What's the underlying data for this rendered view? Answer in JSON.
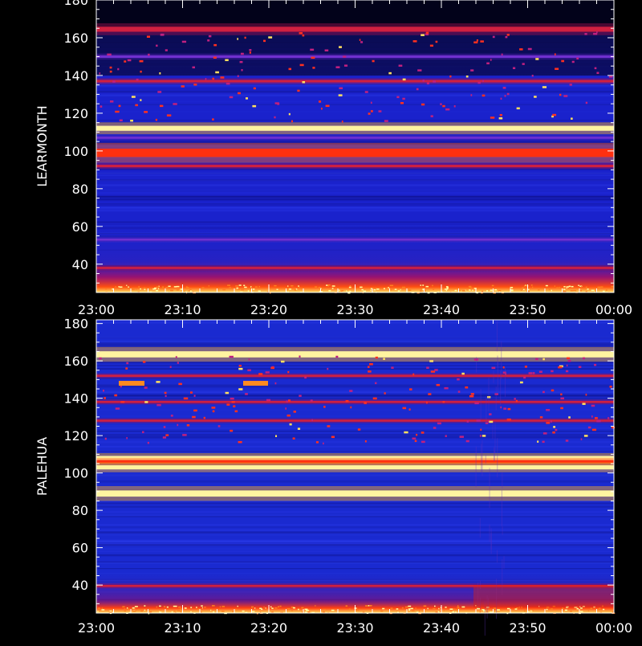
{
  "chart_data": [
    {
      "type": "heatmap",
      "station": "LEARMONTH",
      "ylabel": "LEARMONTH",
      "xlabel": "",
      "x_ticks": [
        "23:00",
        "23:10",
        "23:20",
        "23:30",
        "23:40",
        "23:50",
        "00:00"
      ],
      "y_ticks": [
        40,
        60,
        80,
        100,
        120,
        140,
        160,
        180
      ],
      "ylim": [
        25,
        180
      ],
      "background_color": "#1a22cc",
      "bands": [
        {
          "y": 164.5,
          "level": "medium",
          "width": 1.2
        },
        {
          "y": 150,
          "level": "low",
          "width": 0.6
        },
        {
          "y": 137,
          "level": "medium",
          "width": 0.6
        },
        {
          "y": 112,
          "level": "very-high",
          "width": 1.2
        },
        {
          "y": 107,
          "level": "low",
          "width": 0.5
        },
        {
          "y": 99,
          "level": "high",
          "width": 2.0
        },
        {
          "y": 92,
          "level": "medium",
          "width": 0.6
        },
        {
          "y": 53,
          "level": "low",
          "width": 0.5
        },
        {
          "y": 38,
          "level": "medium",
          "width": 0.5
        }
      ]
    },
    {
      "type": "heatmap",
      "station": "PALEHUA",
      "ylabel": "PALEHUA",
      "xlabel": "",
      "x_ticks": [
        "23:00",
        "23:10",
        "23:20",
        "23:30",
        "23:40",
        "23:50",
        "00:00"
      ],
      "y_ticks": [
        40,
        60,
        80,
        100,
        120,
        140,
        160,
        180
      ],
      "ylim": [
        25,
        182
      ],
      "background_color": "#1a2ad0",
      "bands": [
        {
          "y": 163.5,
          "level": "very-high",
          "width": 1.5
        },
        {
          "y": 152,
          "level": "medium",
          "width": 0.5
        },
        {
          "y": 138,
          "level": "medium",
          "width": 0.5
        },
        {
          "y": 128,
          "level": "medium",
          "width": 0.5
        },
        {
          "y": 108,
          "level": "very-high",
          "width": 1.0
        },
        {
          "y": 106,
          "level": "high",
          "width": 0.8
        },
        {
          "y": 103,
          "level": "very-high",
          "width": 1.0
        },
        {
          "y": 89,
          "level": "very-high",
          "width": 1.5
        },
        {
          "y": 39.5,
          "level": "medium",
          "width": 0.5
        }
      ]
    }
  ]
}
